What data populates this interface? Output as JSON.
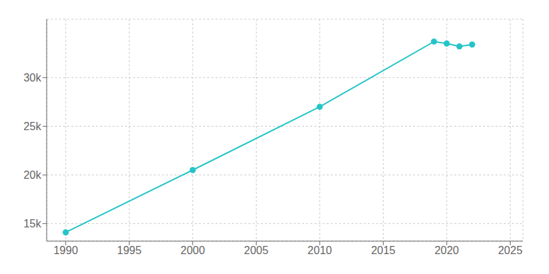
{
  "chart_data": {
    "type": "line",
    "x": [
      1990,
      2000,
      2010,
      2019,
      2020,
      2021,
      2022
    ],
    "values": [
      14100,
      20500,
      27000,
      33700,
      33500,
      33200,
      33400
    ],
    "color": "#25C4C8",
    "marker": "circle",
    "xlim": [
      1988.5,
      2026
    ],
    "ylim": [
      13200,
      36000
    ],
    "xticks": [
      1990,
      1995,
      2000,
      2005,
      2010,
      2015,
      2020,
      2025
    ],
    "yticks": [
      {
        "value": 15000,
        "label": "15k"
      },
      {
        "value": 20000,
        "label": "20k"
      },
      {
        "value": 25000,
        "label": "25k"
      },
      {
        "value": 30000,
        "label": "30k"
      }
    ],
    "grid": true
  }
}
